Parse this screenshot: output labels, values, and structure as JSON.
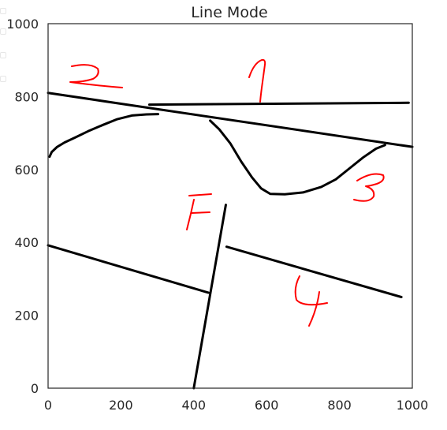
{
  "chart_data": {
    "type": "line",
    "title": "Line Mode",
    "xlabel": "",
    "ylabel": "",
    "xlim": [
      0,
      1000
    ],
    "ylim": [
      0,
      1000
    ],
    "xticks": [
      0,
      200,
      400,
      600,
      800,
      1000
    ],
    "yticks": [
      0,
      200,
      400,
      600,
      800,
      1000
    ],
    "grid": false,
    "series": [
      {
        "values": [
          [
            0,
            810
          ],
          [
            1000,
            662
          ]
        ]
      },
      {
        "values": [
          [
            278,
            778
          ],
          [
            990,
            783
          ]
        ]
      },
      {
        "values": [
          [
            4,
            635
          ],
          [
            10,
            648
          ],
          [
            25,
            662
          ],
          [
            45,
            674
          ],
          [
            75,
            688
          ],
          [
            110,
            705
          ],
          [
            150,
            722
          ],
          [
            190,
            738
          ],
          [
            230,
            748
          ],
          [
            270,
            751
          ],
          [
            302,
            752
          ]
        ]
      },
      {
        "values": [
          [
            445,
            734
          ],
          [
            470,
            710
          ],
          [
            500,
            672
          ],
          [
            530,
            622
          ],
          [
            560,
            578
          ],
          [
            585,
            548
          ],
          [
            610,
            533
          ],
          [
            650,
            532
          ],
          [
            700,
            537
          ],
          [
            750,
            552
          ],
          [
            790,
            573
          ],
          [
            830,
            605
          ],
          [
            865,
            633
          ],
          [
            900,
            657
          ],
          [
            925,
            667
          ]
        ]
      },
      {
        "values": [
          [
            0,
            392
          ],
          [
            440,
            262
          ]
        ]
      },
      {
        "values": [
          [
            488,
            503
          ],
          [
            400,
            0
          ]
        ]
      },
      {
        "values": [
          [
            490,
            388
          ],
          [
            970,
            250
          ]
        ]
      }
    ],
    "annotations": [
      "1",
      "2",
      "3",
      "4",
      "F"
    ],
    "line_color": "#000000",
    "annotation_color": "#ff0000"
  }
}
